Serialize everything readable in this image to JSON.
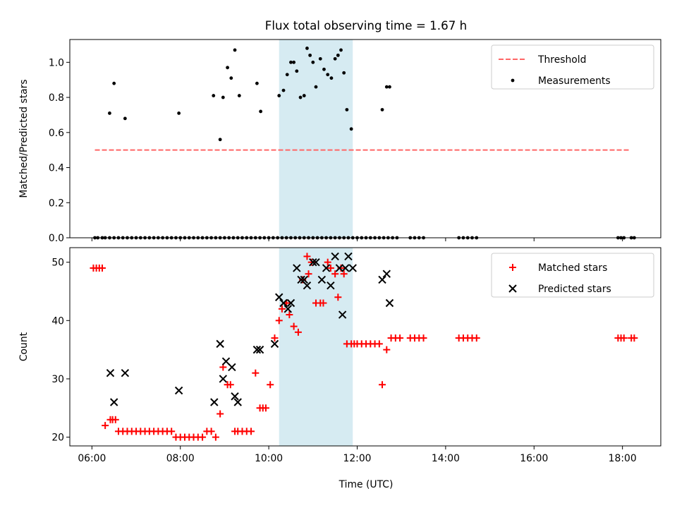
{
  "figure": {
    "title": "Flux total observing time = 1.67 h",
    "xlabel": "Time (UTC)"
  },
  "chart_data": [
    {
      "type": "scatter",
      "panel": "top",
      "title": "Flux total observing time = 1.67 h",
      "ylabel": "Matched/Predicted stars",
      "xlim": [
        "05:30",
        "18:52"
      ],
      "ylim": [
        0,
        1.13
      ],
      "yticks": [
        "0.0",
        "0.2",
        "0.4",
        "0.6",
        "0.8",
        "1.0"
      ],
      "xticks": [
        "06:00",
        "08:00",
        "10:00",
        "12:00",
        "14:00",
        "16:00",
        "18:00"
      ],
      "highlight_span": {
        "start": "10:14",
        "end": "11:54",
        "color": "#add8e6"
      },
      "threshold": {
        "name": "Threshold",
        "value": 0.5,
        "start": "06:04",
        "end": "18:10",
        "color": "#ff6666",
        "style": "dashed"
      },
      "legend": {
        "position": "top-right",
        "entries": [
          "Threshold",
          "Measurements"
        ]
      },
      "series": [
        {
          "name": "Measurements",
          "marker": "dot",
          "color": "#000000",
          "x": [
            "06:04",
            "06:08",
            "06:14",
            "06:18",
            "06:24",
            "06:30",
            "06:36",
            "06:42",
            "06:48",
            "06:54",
            "07:00",
            "07:06",
            "07:12",
            "07:18",
            "07:24",
            "07:30",
            "07:36",
            "07:42",
            "07:48",
            "07:54",
            "08:00",
            "08:06",
            "08:12",
            "08:18",
            "08:24",
            "08:30",
            "08:36",
            "08:42",
            "08:48",
            "08:54",
            "09:00",
            "09:06",
            "09:12",
            "09:18",
            "09:24",
            "09:30",
            "09:36",
            "09:42",
            "09:48",
            "09:54",
            "10:00",
            "10:06",
            "10:12",
            "10:18",
            "10:24",
            "10:30",
            "10:36",
            "10:42",
            "10:48",
            "10:54",
            "11:00",
            "11:06",
            "11:12",
            "11:18",
            "11:24",
            "11:30",
            "11:36",
            "11:42",
            "11:48",
            "11:54",
            "12:00",
            "12:06",
            "12:12",
            "12:18",
            "12:24",
            "12:30",
            "12:36",
            "12:42",
            "12:48",
            "12:54",
            "13:12",
            "13:18",
            "13:24",
            "13:30",
            "14:18",
            "14:24",
            "14:30",
            "14:36",
            "14:42",
            "17:54",
            "17:58",
            "18:02",
            "18:12",
            "18:16",
            "06:24",
            "06:30",
            "06:45",
            "07:58",
            "08:45",
            "08:54",
            "08:58",
            "09:04",
            "09:09",
            "09:14",
            "09:20",
            "09:44",
            "09:49",
            "10:14",
            "10:20",
            "10:25",
            "10:30",
            "10:34",
            "10:38",
            "10:43",
            "10:48",
            "10:52",
            "10:56",
            "11:00",
            "11:04",
            "11:10",
            "11:15",
            "11:20",
            "11:25",
            "11:30",
            "11:34",
            "11:38",
            "11:42",
            "11:46",
            "11:52",
            "12:34",
            "12:40",
            "12:44"
          ],
          "y": [
            0,
            0,
            0,
            0,
            0,
            0,
            0,
            0,
            0,
            0,
            0,
            0,
            0,
            0,
            0,
            0,
            0,
            0,
            0,
            0,
            0,
            0,
            0,
            0,
            0,
            0,
            0,
            0,
            0,
            0,
            0,
            0,
            0,
            0,
            0,
            0,
            0,
            0,
            0,
            0,
            0,
            0,
            0,
            0,
            0,
            0,
            0,
            0,
            0,
            0,
            0,
            0,
            0,
            0,
            0,
            0,
            0,
            0,
            0,
            0,
            0,
            0,
            0,
            0,
            0,
            0,
            0,
            0,
            0,
            0,
            0,
            0,
            0,
            0,
            0,
            0,
            0,
            0,
            0,
            0,
            0,
            0,
            0,
            0,
            0.71,
            0.88,
            0.68,
            0.71,
            0.81,
            0.56,
            0.8,
            0.97,
            0.91,
            1.07,
            0.81,
            0.88,
            0.72,
            0.81,
            0.84,
            0.93,
            1.0,
            1.0,
            0.95,
            0.8,
            0.81,
            1.08,
            1.04,
            1.0,
            0.86,
            1.02,
            0.96,
            0.93,
            0.91,
            1.02,
            1.04,
            1.07,
            0.94,
            0.73,
            0.62,
            0.73,
            0.86,
            0.86
          ]
        }
      ]
    },
    {
      "type": "scatter",
      "panel": "bottom",
      "ylabel": "Count",
      "xlabel": "Time (UTC)",
      "xlim": [
        "05:30",
        "18:52"
      ],
      "ylim": [
        18.5,
        52.5
      ],
      "yticks": [
        "20",
        "30",
        "40",
        "50"
      ],
      "xticks": [
        "06:00",
        "08:00",
        "10:00",
        "12:00",
        "14:00",
        "16:00",
        "18:00"
      ],
      "highlight_span": {
        "start": "10:14",
        "end": "11:54",
        "color": "#add8e6"
      },
      "legend": {
        "position": "top-right",
        "entries": [
          "Matched stars",
          "Predicted stars"
        ]
      },
      "series": [
        {
          "name": "Matched stars",
          "marker": "plus",
          "color": "#ff0000",
          "x": [
            "06:02",
            "06:06",
            "06:10",
            "06:14",
            "06:18",
            "06:25",
            "06:28",
            "06:32",
            "06:36",
            "06:42",
            "06:48",
            "06:54",
            "07:00",
            "07:06",
            "07:12",
            "07:18",
            "07:24",
            "07:30",
            "07:36",
            "07:42",
            "07:48",
            "07:54",
            "08:00",
            "08:06",
            "08:12",
            "08:18",
            "08:24",
            "08:30",
            "08:36",
            "08:42",
            "08:48",
            "08:54",
            "08:58",
            "09:04",
            "09:08",
            "09:14",
            "09:18",
            "09:24",
            "09:30",
            "09:36",
            "09:42",
            "09:48",
            "09:52",
            "09:56",
            "10:02",
            "10:08",
            "10:14",
            "10:18",
            "10:24",
            "10:28",
            "10:34",
            "10:40",
            "10:46",
            "10:52",
            "10:54",
            "10:58",
            "11:04",
            "11:10",
            "11:14",
            "11:20",
            "11:24",
            "11:30",
            "11:34",
            "11:38",
            "11:42",
            "11:46",
            "11:52",
            "11:56",
            "12:00",
            "12:06",
            "12:12",
            "12:18",
            "12:24",
            "12:30",
            "12:34",
            "12:40",
            "12:46",
            "12:52",
            "12:58",
            "13:12",
            "13:18",
            "13:24",
            "13:30",
            "14:18",
            "14:24",
            "14:30",
            "14:36",
            "14:42",
            "17:54",
            "17:58",
            "18:02",
            "18:12",
            "18:16"
          ],
          "y": [
            49,
            49,
            49,
            49,
            22,
            23,
            23,
            23,
            21,
            21,
            21,
            21,
            21,
            21,
            21,
            21,
            21,
            21,
            21,
            21,
            21,
            20,
            20,
            20,
            20,
            20,
            20,
            20,
            21,
            21,
            20,
            24,
            32,
            29,
            29,
            21,
            21,
            21,
            21,
            21,
            31,
            25,
            25,
            25,
            29,
            37,
            40,
            42,
            43,
            41,
            39,
            38,
            47,
            51,
            48,
            50,
            43,
            43,
            43,
            50,
            49,
            48,
            44,
            49,
            48,
            36,
            36,
            36,
            36,
            36,
            36,
            36,
            36,
            36,
            29,
            35,
            37,
            37,
            37,
            37,
            37,
            37,
            37,
            37,
            37,
            37,
            37,
            37,
            37,
            37,
            37,
            37,
            37
          ]
        },
        {
          "name": "Predicted stars",
          "marker": "x",
          "color": "#000000",
          "x": [
            "06:25",
            "06:30",
            "06:45",
            "07:58",
            "08:46",
            "08:54",
            "08:58",
            "09:02",
            "09:10",
            "09:14",
            "09:18",
            "09:44",
            "09:48",
            "10:08",
            "10:14",
            "10:20",
            "10:26",
            "10:30",
            "10:38",
            "10:44",
            "10:48",
            "10:52",
            "11:00",
            "11:04",
            "11:12",
            "11:18",
            "11:24",
            "11:30",
            "11:36",
            "11:40",
            "11:44",
            "11:48",
            "11:54",
            "12:34",
            "12:40",
            "12:44"
          ],
          "y": [
            31,
            26,
            31,
            28,
            26,
            36,
            30,
            33,
            32,
            27,
            26,
            35,
            35,
            36,
            44,
            43,
            42,
            43,
            49,
            47,
            47,
            46,
            50,
            50,
            47,
            49,
            46,
            51,
            49,
            41,
            49,
            51,
            49,
            47,
            48,
            43
          ]
        }
      ]
    }
  ]
}
